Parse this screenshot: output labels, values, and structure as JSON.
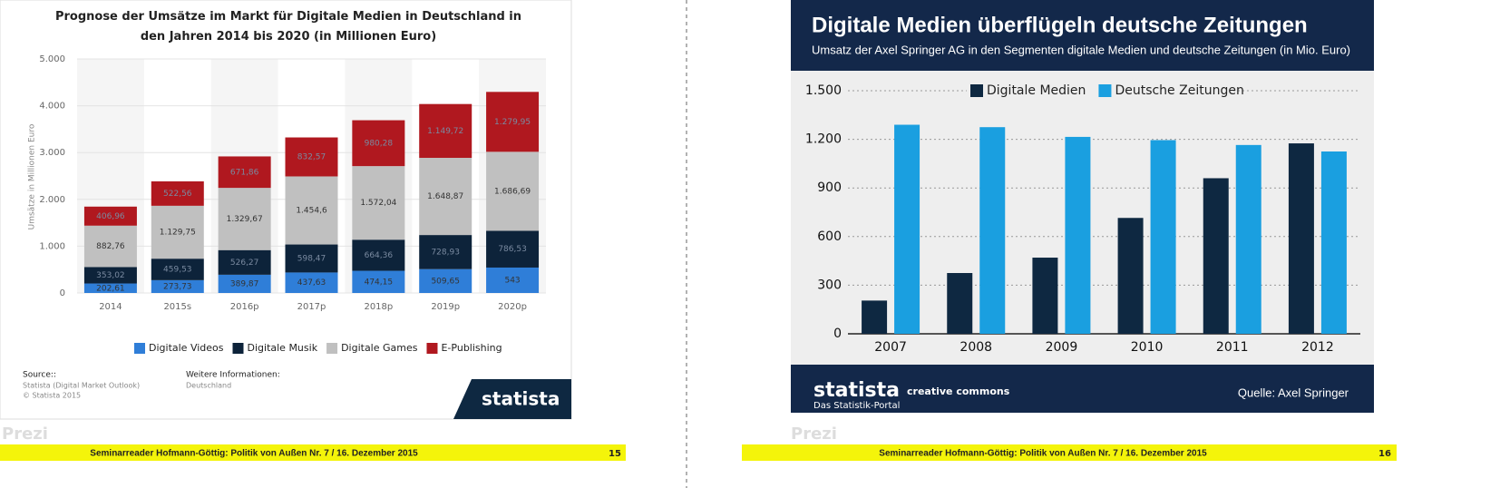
{
  "chart_data": [
    {
      "type": "bar",
      "stacked": true,
      "title": "Prognose der Umsätze im Markt für Digitale Medien in Deutschland in den Jahren 2014 bis 2020 (in Millionen Euro)",
      "y_label": "Umsätze in Millionen Euro",
      "categories": [
        "2014",
        "2015s",
        "2016p",
        "2017p",
        "2018p",
        "2019p",
        "2020p"
      ],
      "series": [
        {
          "name": "Digitale Videos",
          "color": "#2f7ed8",
          "values": [
            202.61,
            273.73,
            389.87,
            437.63,
            474.15,
            509.65,
            543
          ],
          "value_labels": [
            "202,61",
            "273,73",
            "389,87",
            "437,63",
            "474,15",
            "509,65",
            "543"
          ]
        },
        {
          "name": "Digitale Musik",
          "color": "#0d233a",
          "values": [
            353.02,
            459.53,
            526.27,
            598.47,
            664.36,
            728.93,
            786.53
          ],
          "value_labels": [
            "353,02",
            "459,53",
            "526,27",
            "598,47",
            "664,36",
            "728,93",
            "786,53"
          ]
        },
        {
          "name": "Digitale Games",
          "color": "#c0c0c0",
          "values": [
            882.76,
            1129.75,
            1329.67,
            1454.6,
            1572.04,
            1648.87,
            1686.69
          ],
          "value_labels": [
            "882,76",
            "1.129,75",
            "1.329,67",
            "1.454,6",
            "1.572,04",
            "1.648,87",
            "1.686,69"
          ]
        },
        {
          "name": "E-Publishing",
          "color": "#b0181f",
          "values": [
            406.96,
            522.56,
            671.86,
            832.57,
            980.28,
            1149.72,
            1279.95
          ],
          "value_labels": [
            "406,96",
            "522,56",
            "671,86",
            "832,57",
            "980,28",
            "1.149,72",
            "1.279,95"
          ]
        }
      ],
      "ylim": [
        0,
        5000
      ],
      "yticks": [
        0,
        {
          "value": 1000,
          "label": "1.000"
        },
        {
          "value": 2000,
          "label": "2.000"
        },
        {
          "value": 3000,
          "label": "3.000"
        },
        {
          "value": 4000,
          "label": "4.000"
        },
        {
          "value": 5000,
          "label": "5.000"
        }
      ],
      "grid": true,
      "legend": "bottom",
      "source_label": "Source::",
      "source": "Statista (Digital Market Outlook)",
      "copyright": "© Statista 2015",
      "info_label": "Weitere Informationen:",
      "info": "Deutschland",
      "logo": "statista"
    },
    {
      "type": "bar",
      "stacked": false,
      "title": "Digitale Medien überflügeln deutsche Zeitungen",
      "subtitle": "Umsatz der Axel Springer AG in den Segmenten digitale Medien und deutsche Zeitungen (in Mio. Euro)",
      "categories": [
        "2007",
        "2008",
        "2009",
        "2010",
        "2011",
        "2012"
      ],
      "series": [
        {
          "name": "Digitale Medien",
          "color": "#0e2841",
          "values": [
            205,
            375,
            470,
            715,
            960,
            1175
          ]
        },
        {
          "name": "Deutsche Zeitungen",
          "color": "#1a9fe0",
          "values": [
            1290,
            1275,
            1215,
            1195,
            1165,
            1125
          ]
        }
      ],
      "ylim": [
        0,
        1500
      ],
      "yticks": [
        0,
        300,
        600,
        900,
        {
          "value": 1200,
          "label": "1.200"
        },
        {
          "value": 1500,
          "label": "1.500"
        }
      ],
      "grid": true,
      "legend": "top",
      "logo": "statista",
      "logo_sub": "Das Statistik-Portal",
      "license": "creative commons",
      "source": "Quelle: Axel Springer"
    }
  ],
  "pages": [
    {
      "footer": "Seminarreader Hofmann-Göttig: Politik von Außen Nr. 7 / 16. Dezember 2015",
      "page_number": 15,
      "watermark": "Prezi"
    },
    {
      "footer": "Seminarreader Hofmann-Göttig: Politik von Außen Nr. 7 / 16. Dezember 2015",
      "page_number": 16,
      "watermark": "Prezi"
    }
  ]
}
